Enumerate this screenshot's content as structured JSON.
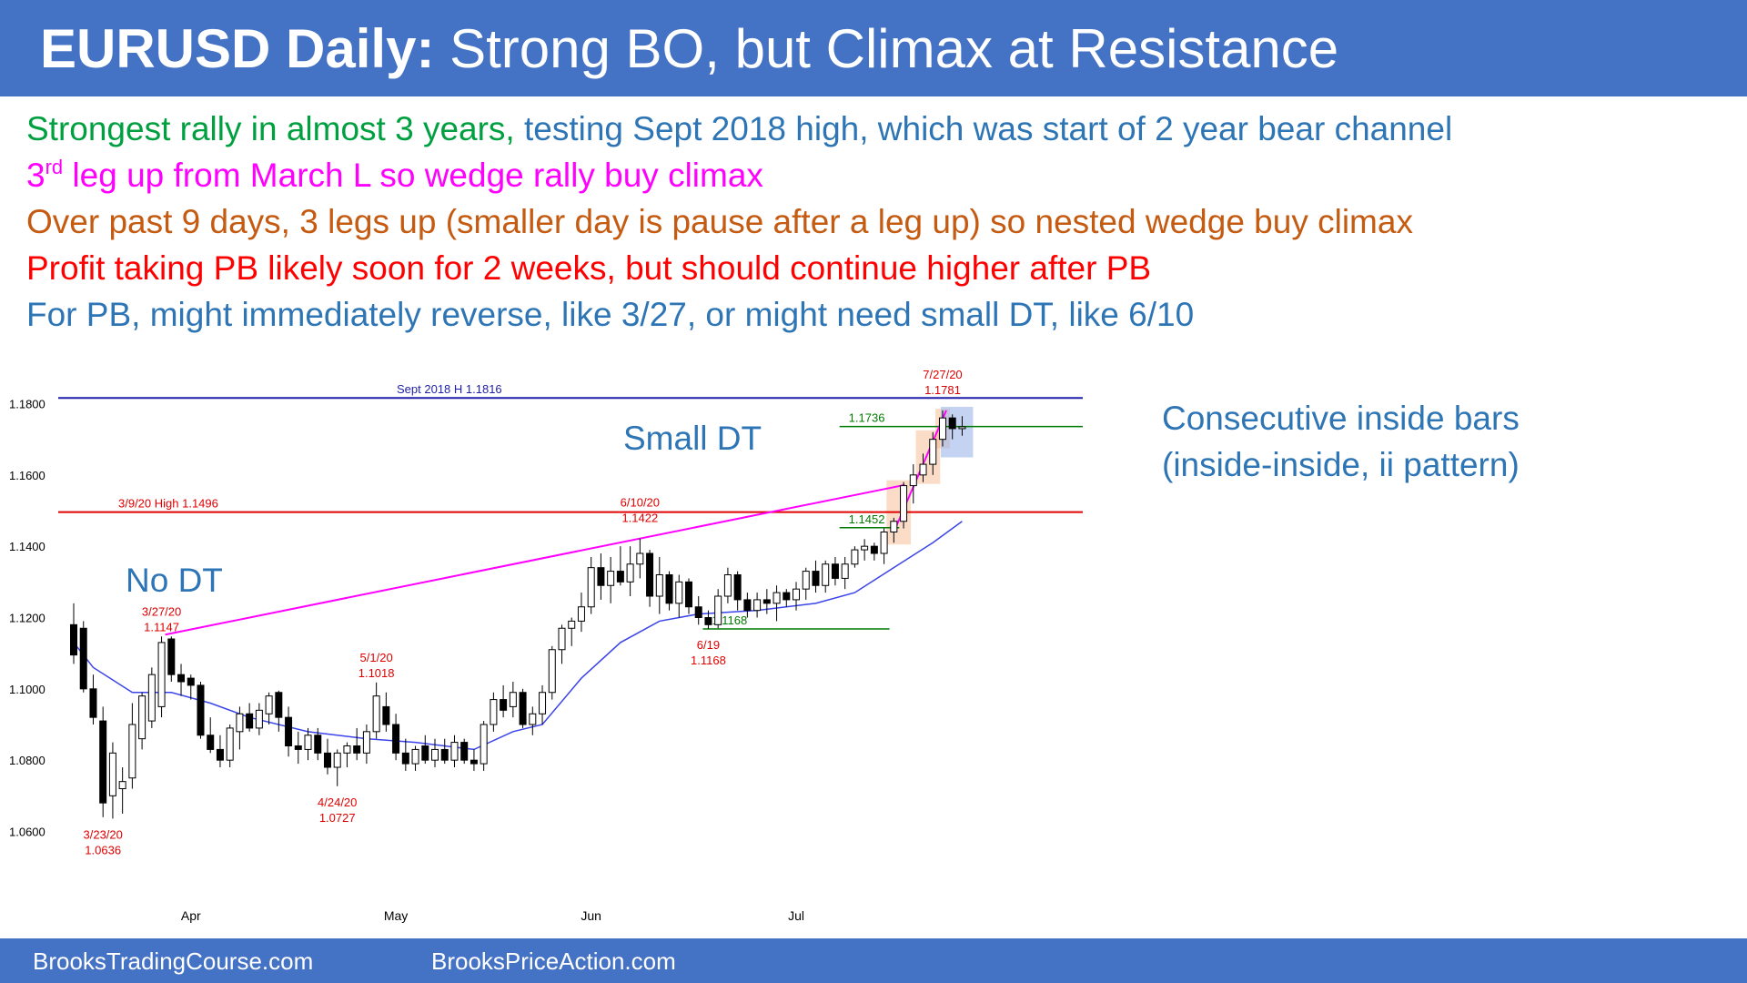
{
  "header": {
    "title_bold": "EURUSD Daily:",
    "title_rest": " Strong BO, but Climax at Resistance"
  },
  "bullets": [
    {
      "parts": [
        {
          "text": "Strongest rally in almost 3 years,",
          "color": "#00a040"
        },
        {
          "text": " testing Sept 2018 high, which was start of 2 year bear channel",
          "color": "#2e75b6"
        }
      ]
    },
    {
      "parts": [
        {
          "text": "3",
          "color": "#ff00ff"
        },
        {
          "text": "rd",
          "color": "#ff00ff",
          "sup": true
        },
        {
          "text": " leg up from March L so wedge rally buy climax",
          "color": "#ff00ff"
        }
      ]
    },
    {
      "parts": [
        {
          "text": "Over past 9 days, 3 legs up (smaller day is pause after a leg up) so nested wedge buy climax",
          "color": "#c55a11"
        }
      ]
    },
    {
      "parts": [
        {
          "text": "Profit taking PB likely soon for 2 weeks, but should continue higher after PB",
          "color": "#ff0000"
        }
      ]
    },
    {
      "parts": [
        {
          "text": "For PB, might immediately reverse, like 3/27, or might need small DT, like 6/10",
          "color": "#2e75b6"
        }
      ]
    }
  ],
  "callouts": {
    "inside_bars_line1": "Consecutive inside bars",
    "inside_bars_line2": "(inside-inside, ii pattern)",
    "small_dt": "Small DT",
    "no_dt": "No DT"
  },
  "footer": {
    "left": "BrooksTradingCourse.com",
    "right": "BrooksPriceAction.com"
  },
  "colors": {
    "header_bg": "#4472c4",
    "bull_body": "#ffffff",
    "bear_body": "#000000",
    "ema": "#3b44e8",
    "resistance_2018": "#1f1fa8",
    "resistance_march": "#e00000",
    "trendline": "#ff00ff",
    "support_lines": "#007a00",
    "label_red": "#e00000",
    "label_blue": "#1f3fb0",
    "label_green": "#007a00"
  },
  "chart_data": {
    "type": "candlestick",
    "y_ticks": [
      "1.0600",
      "1.0800",
      "1.1000",
      "1.1200",
      "1.1400",
      "1.1600",
      "1.1800"
    ],
    "ylim": [
      1.054,
      1.186
    ],
    "x_months": [
      {
        "label": "Apr",
        "index": 12
      },
      {
        "label": "May",
        "index": 33
      },
      {
        "label": "Jun",
        "index": 53
      },
      {
        "label": "Jul",
        "index": 74
      }
    ],
    "candles": [
      {
        "o": 1.118,
        "h": 1.124,
        "l": 1.107,
        "c": 1.1095
      },
      {
        "o": 1.117,
        "h": 1.119,
        "l": 1.099,
        "c": 1.1
      },
      {
        "o": 1.1,
        "h": 1.104,
        "l": 1.09,
        "c": 1.092
      },
      {
        "o": 1.091,
        "h": 1.095,
        "l": 1.064,
        "c": 1.068
      },
      {
        "o": 1.07,
        "h": 1.085,
        "l": 1.0636,
        "c": 1.082
      },
      {
        "o": 1.072,
        "h": 1.078,
        "l": 1.065,
        "c": 1.074
      },
      {
        "o": 1.075,
        "h": 1.096,
        "l": 1.072,
        "c": 1.09
      },
      {
        "o": 1.086,
        "h": 1.099,
        "l": 1.083,
        "c": 1.098
      },
      {
        "o": 1.091,
        "h": 1.106,
        "l": 1.089,
        "c": 1.104
      },
      {
        "o": 1.095,
        "h": 1.1147,
        "l": 1.092,
        "c": 1.113
      },
      {
        "o": 1.114,
        "h": 1.1147,
        "l": 1.102,
        "c": 1.104
      },
      {
        "o": 1.104,
        "h": 1.107,
        "l": 1.098,
        "c": 1.102
      },
      {
        "o": 1.103,
        "h": 1.104,
        "l": 1.097,
        "c": 1.101
      },
      {
        "o": 1.101,
        "h": 1.102,
        "l": 1.086,
        "c": 1.087
      },
      {
        "o": 1.087,
        "h": 1.092,
        "l": 1.082,
        "c": 1.083
      },
      {
        "o": 1.083,
        "h": 1.087,
        "l": 1.078,
        "c": 1.08
      },
      {
        "o": 1.08,
        "h": 1.09,
        "l": 1.078,
        "c": 1.089
      },
      {
        "o": 1.088,
        "h": 1.095,
        "l": 1.083,
        "c": 1.093
      },
      {
        "o": 1.093,
        "h": 1.096,
        "l": 1.088,
        "c": 1.089
      },
      {
        "o": 1.089,
        "h": 1.096,
        "l": 1.087,
        "c": 1.094
      },
      {
        "o": 1.093,
        "h": 1.099,
        "l": 1.09,
        "c": 1.098
      },
      {
        "o": 1.099,
        "h": 1.0995,
        "l": 1.088,
        "c": 1.092
      },
      {
        "o": 1.092,
        "h": 1.095,
        "l": 1.081,
        "c": 1.084
      },
      {
        "o": 1.084,
        "h": 1.088,
        "l": 1.079,
        "c": 1.083
      },
      {
        "o": 1.083,
        "h": 1.089,
        "l": 1.08,
        "c": 1.087
      },
      {
        "o": 1.087,
        "h": 1.089,
        "l": 1.08,
        "c": 1.082
      },
      {
        "o": 1.082,
        "h": 1.086,
        "l": 1.076,
        "c": 1.078
      },
      {
        "o": 1.078,
        "h": 1.083,
        "l": 1.0727,
        "c": 1.082
      },
      {
        "o": 1.082,
        "h": 1.085,
        "l": 1.078,
        "c": 1.084
      },
      {
        "o": 1.084,
        "h": 1.089,
        "l": 1.08,
        "c": 1.082
      },
      {
        "o": 1.082,
        "h": 1.09,
        "l": 1.079,
        "c": 1.088
      },
      {
        "o": 1.088,
        "h": 1.1018,
        "l": 1.086,
        "c": 1.098
      },
      {
        "o": 1.095,
        "h": 1.099,
        "l": 1.088,
        "c": 1.09
      },
      {
        "o": 1.09,
        "h": 1.093,
        "l": 1.08,
        "c": 1.082
      },
      {
        "o": 1.082,
        "h": 1.086,
        "l": 1.077,
        "c": 1.079
      },
      {
        "o": 1.079,
        "h": 1.084,
        "l": 1.077,
        "c": 1.083
      },
      {
        "o": 1.084,
        "h": 1.087,
        "l": 1.079,
        "c": 1.08
      },
      {
        "o": 1.08,
        "h": 1.086,
        "l": 1.078,
        "c": 1.083
      },
      {
        "o": 1.083,
        "h": 1.086,
        "l": 1.079,
        "c": 1.08
      },
      {
        "o": 1.08,
        "h": 1.087,
        "l": 1.078,
        "c": 1.085
      },
      {
        "o": 1.085,
        "h": 1.086,
        "l": 1.079,
        "c": 1.08
      },
      {
        "o": 1.08,
        "h": 1.083,
        "l": 1.077,
        "c": 1.079
      },
      {
        "o": 1.079,
        "h": 1.091,
        "l": 1.077,
        "c": 1.09
      },
      {
        "o": 1.09,
        "h": 1.099,
        "l": 1.088,
        "c": 1.097
      },
      {
        "o": 1.097,
        "h": 1.101,
        "l": 1.092,
        "c": 1.094
      },
      {
        "o": 1.095,
        "h": 1.102,
        "l": 1.092,
        "c": 1.099
      },
      {
        "o": 1.099,
        "h": 1.1,
        "l": 1.089,
        "c": 1.09
      },
      {
        "o": 1.09,
        "h": 1.095,
        "l": 1.087,
        "c": 1.093
      },
      {
        "o": 1.093,
        "h": 1.101,
        "l": 1.09,
        "c": 1.099
      },
      {
        "o": 1.099,
        "h": 1.112,
        "l": 1.097,
        "c": 1.111
      },
      {
        "o": 1.111,
        "h": 1.118,
        "l": 1.107,
        "c": 1.117
      },
      {
        "o": 1.117,
        "h": 1.12,
        "l": 1.112,
        "c": 1.119
      },
      {
        "o": 1.119,
        "h": 1.127,
        "l": 1.116,
        "c": 1.123
      },
      {
        "o": 1.123,
        "h": 1.137,
        "l": 1.121,
        "c": 1.134
      },
      {
        "o": 1.134,
        "h": 1.138,
        "l": 1.125,
        "c": 1.129
      },
      {
        "o": 1.129,
        "h": 1.137,
        "l": 1.124,
        "c": 1.133
      },
      {
        "o": 1.133,
        "h": 1.14,
        "l": 1.129,
        "c": 1.13
      },
      {
        "o": 1.13,
        "h": 1.14,
        "l": 1.126,
        "c": 1.135
      },
      {
        "o": 1.135,
        "h": 1.1422,
        "l": 1.131,
        "c": 1.138
      },
      {
        "o": 1.138,
        "h": 1.139,
        "l": 1.123,
        "c": 1.126
      },
      {
        "o": 1.126,
        "h": 1.137,
        "l": 1.121,
        "c": 1.132
      },
      {
        "o": 1.132,
        "h": 1.133,
        "l": 1.122,
        "c": 1.124
      },
      {
        "o": 1.124,
        "h": 1.132,
        "l": 1.12,
        "c": 1.13
      },
      {
        "o": 1.13,
        "h": 1.131,
        "l": 1.121,
        "c": 1.123
      },
      {
        "o": 1.123,
        "h": 1.126,
        "l": 1.118,
        "c": 1.12
      },
      {
        "o": 1.12,
        "h": 1.122,
        "l": 1.1168,
        "c": 1.118
      },
      {
        "o": 1.118,
        "h": 1.128,
        "l": 1.117,
        "c": 1.126
      },
      {
        "o": 1.126,
        "h": 1.134,
        "l": 1.124,
        "c": 1.132
      },
      {
        "o": 1.132,
        "h": 1.133,
        "l": 1.122,
        "c": 1.125
      },
      {
        "o": 1.125,
        "h": 1.127,
        "l": 1.12,
        "c": 1.122
      },
      {
        "o": 1.122,
        "h": 1.127,
        "l": 1.12,
        "c": 1.125
      },
      {
        "o": 1.125,
        "h": 1.128,
        "l": 1.121,
        "c": 1.124
      },
      {
        "o": 1.124,
        "h": 1.129,
        "l": 1.119,
        "c": 1.127
      },
      {
        "o": 1.127,
        "h": 1.128,
        "l": 1.123,
        "c": 1.125
      },
      {
        "o": 1.125,
        "h": 1.13,
        "l": 1.122,
        "c": 1.128
      },
      {
        "o": 1.128,
        "h": 1.134,
        "l": 1.125,
        "c": 1.133
      },
      {
        "o": 1.133,
        "h": 1.136,
        "l": 1.127,
        "c": 1.129
      },
      {
        "o": 1.129,
        "h": 1.136,
        "l": 1.127,
        "c": 1.135
      },
      {
        "o": 1.135,
        "h": 1.137,
        "l": 1.129,
        "c": 1.131
      },
      {
        "o": 1.131,
        "h": 1.137,
        "l": 1.128,
        "c": 1.135
      },
      {
        "o": 1.135,
        "h": 1.14,
        "l": 1.134,
        "c": 1.139
      },
      {
        "o": 1.139,
        "h": 1.142,
        "l": 1.136,
        "c": 1.14
      },
      {
        "o": 1.14,
        "h": 1.141,
        "l": 1.136,
        "c": 1.138
      },
      {
        "o": 1.138,
        "h": 1.145,
        "l": 1.135,
        "c": 1.144
      },
      {
        "o": 1.144,
        "h": 1.148,
        "l": 1.141,
        "c": 1.147
      },
      {
        "o": 1.147,
        "h": 1.158,
        "l": 1.145,
        "c": 1.157
      },
      {
        "o": 1.157,
        "h": 1.163,
        "l": 1.152,
        "c": 1.16
      },
      {
        "o": 1.16,
        "h": 1.166,
        "l": 1.158,
        "c": 1.163
      },
      {
        "o": 1.163,
        "h": 1.172,
        "l": 1.16,
        "c": 1.17
      },
      {
        "o": 1.17,
        "h": 1.1781,
        "l": 1.168,
        "c": 1.176
      },
      {
        "o": 1.176,
        "h": 1.177,
        "l": 1.17,
        "c": 1.173
      },
      {
        "o": 1.173,
        "h": 1.1765,
        "l": 1.171,
        "c": 1.1735
      }
    ],
    "ema": [
      {
        "i": 0,
        "v": 1.113
      },
      {
        "i": 2,
        "v": 1.106
      },
      {
        "i": 6,
        "v": 1.099
      },
      {
        "i": 10,
        "v": 1.099
      },
      {
        "i": 14,
        "v": 1.096
      },
      {
        "i": 18,
        "v": 1.092
      },
      {
        "i": 24,
        "v": 1.088
      },
      {
        "i": 30,
        "v": 1.086
      },
      {
        "i": 35,
        "v": 1.085
      },
      {
        "i": 41,
        "v": 1.083
      },
      {
        "i": 45,
        "v": 1.088
      },
      {
        "i": 48,
        "v": 1.09
      },
      {
        "i": 52,
        "v": 1.103
      },
      {
        "i": 56,
        "v": 1.113
      },
      {
        "i": 60,
        "v": 1.119
      },
      {
        "i": 64,
        "v": 1.121
      },
      {
        "i": 70,
        "v": 1.122
      },
      {
        "i": 76,
        "v": 1.124
      },
      {
        "i": 80,
        "v": 1.127
      },
      {
        "i": 84,
        "v": 1.134
      },
      {
        "i": 88,
        "v": 1.141
      },
      {
        "i": 91,
        "v": 1.147
      }
    ],
    "levels": [
      {
        "value": 1.1816,
        "label": "Sept 2018 H 1.1816",
        "from": 0,
        "to": 94,
        "color": "#1f1fa8"
      },
      {
        "value": 1.1496,
        "label": "3/9/20 High 1.1496",
        "from": 0,
        "to": 94,
        "color": "#e00000"
      },
      {
        "value": 1.1736,
        "label": "1.1736",
        "from": 79,
        "to": 94,
        "color": "#007a00"
      },
      {
        "value": 1.1452,
        "label": "1.1452",
        "from": 79,
        "to": 84,
        "color": "#007a00"
      },
      {
        "value": 1.1168,
        "label": "1.1168",
        "from": 65,
        "to": 83,
        "color": "#007a00"
      }
    ],
    "annotations": [
      {
        "i": 3,
        "value": 1.0636,
        "date": "3/23/20",
        "price": "1.0636",
        "position": "below"
      },
      {
        "i": 9,
        "value": 1.1147,
        "date": "3/27/20",
        "price": "1.1147",
        "position": "above"
      },
      {
        "i": 27,
        "value": 1.0727,
        "date": "4/24/20",
        "price": "1.0727",
        "position": "below"
      },
      {
        "i": 31,
        "value": 1.1018,
        "date": "5/1/20",
        "price": "1.1018",
        "position": "above"
      },
      {
        "i": 58,
        "value": 1.1422,
        "date": "6/10/20",
        "price": "1.1422",
        "position": "above_high"
      },
      {
        "i": 65,
        "value": 1.1168,
        "date": "6/19",
        "price": "1.1168",
        "position": "below"
      },
      {
        "i": 89,
        "value": 1.1781,
        "date": "7/27/20",
        "price": "1.1781",
        "position": "above_high"
      }
    ]
  }
}
